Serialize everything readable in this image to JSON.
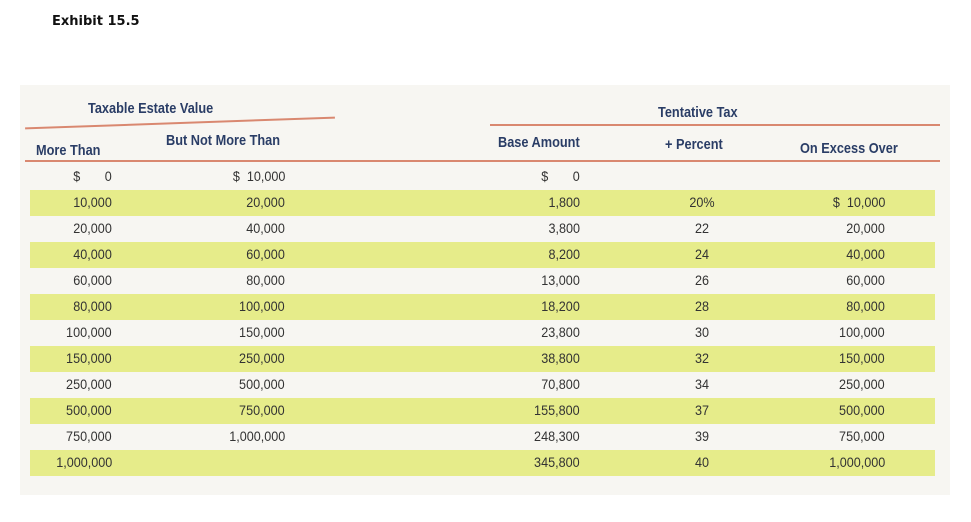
{
  "title": "Exhibit 15.5",
  "headers": {
    "group_left": "Taxable Estate Value",
    "group_right": "Tentative Tax",
    "more_than": "More Than",
    "not_more_than": "But Not More Than",
    "base_amount": "Base Amount",
    "percent": "+ Percent",
    "excess_over": "On Excess Over"
  },
  "colors": {
    "highlight": "#e6ec8a",
    "header_text": "#2a3d66",
    "rule": "#d98870"
  },
  "rows": [
    {
      "more_than": "$       0",
      "not_more_than": "$  10,000",
      "base": "$       0",
      "percent": "",
      "excess": ""
    },
    {
      "more_than": "10,000",
      "not_more_than": "20,000",
      "base": "1,800",
      "percent": "20%",
      "excess": "$  10,000"
    },
    {
      "more_than": "20,000",
      "not_more_than": "40,000",
      "base": "3,800",
      "percent": "22",
      "excess": "20,000"
    },
    {
      "more_than": "40,000",
      "not_more_than": "60,000",
      "base": "8,200",
      "percent": "24",
      "excess": "40,000"
    },
    {
      "more_than": "60,000",
      "not_more_than": "80,000",
      "base": "13,000",
      "percent": "26",
      "excess": "60,000"
    },
    {
      "more_than": "80,000",
      "not_more_than": "100,000",
      "base": "18,200",
      "percent": "28",
      "excess": "80,000"
    },
    {
      "more_than": "100,000",
      "not_more_than": "150,000",
      "base": "23,800",
      "percent": "30",
      "excess": "100,000"
    },
    {
      "more_than": "150,000",
      "not_more_than": "250,000",
      "base": "38,800",
      "percent": "32",
      "excess": "150,000"
    },
    {
      "more_than": "250,000",
      "not_more_than": "500,000",
      "base": "70,800",
      "percent": "34",
      "excess": "250,000"
    },
    {
      "more_than": "500,000",
      "not_more_than": "750,000",
      "base": "155,800",
      "percent": "37",
      "excess": "500,000"
    },
    {
      "more_than": "750,000",
      "not_more_than": "1,000,000",
      "base": "248,300",
      "percent": "39",
      "excess": "750,000"
    },
    {
      "more_than": "1,000,000",
      "not_more_than": "",
      "base": "345,800",
      "percent": "40",
      "excess": "1,000,000"
    }
  ]
}
